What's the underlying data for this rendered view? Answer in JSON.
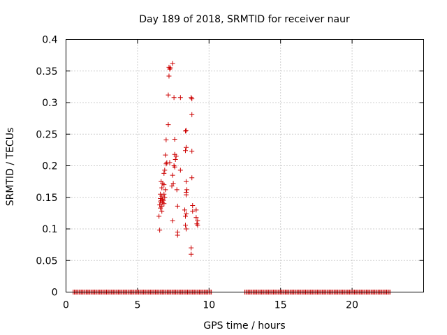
{
  "chart_data": {
    "type": "scatter",
    "title": "Day 189 of 2018, SRMTID for receiver naur",
    "xlabel": "GPS time / hours",
    "ylabel": "SRMTID / TECUs",
    "xlim": [
      0,
      25
    ],
    "ylim": [
      0,
      0.4
    ],
    "grid": true,
    "marker": "+",
    "color": "#cc0000",
    "x_ticks": [
      0,
      5,
      10,
      15,
      20
    ],
    "x_tick_labels": [
      "0",
      "5",
      "10",
      "15",
      "20"
    ],
    "y_ticks": [
      0,
      0.05,
      0.1,
      0.15,
      0.2,
      0.25,
      0.3,
      0.35,
      0.4
    ],
    "y_tick_labels": [
      "0",
      "0.05",
      "0.1",
      "0.15",
      "0.2",
      "0.25",
      "0.3",
      "0.35",
      "0.4"
    ],
    "zero_segments": [
      {
        "x_start": 0.5,
        "x_end": 10.2,
        "step": 0.0833,
        "y": 0
      },
      {
        "x_start": 12.5,
        "x_end": 22.7,
        "step": 0.0833,
        "y": 0
      }
    ],
    "points": [
      [
        7.45,
        0.362
      ],
      [
        7.2,
        0.356
      ],
      [
        7.25,
        0.353
      ],
      [
        7.3,
        0.355
      ],
      [
        7.2,
        0.342
      ],
      [
        7.15,
        0.312
      ],
      [
        7.55,
        0.308
      ],
      [
        8.0,
        0.308
      ],
      [
        8.75,
        0.308
      ],
      [
        8.8,
        0.306
      ],
      [
        8.8,
        0.281
      ],
      [
        7.15,
        0.265
      ],
      [
        8.35,
        0.255
      ],
      [
        8.4,
        0.256
      ],
      [
        7.6,
        0.242
      ],
      [
        7.0,
        0.241
      ],
      [
        8.4,
        0.229
      ],
      [
        8.35,
        0.224
      ],
      [
        8.8,
        0.223
      ],
      [
        6.95,
        0.217
      ],
      [
        7.6,
        0.218
      ],
      [
        7.7,
        0.215
      ],
      [
        7.65,
        0.21
      ],
      [
        7.05,
        0.205
      ],
      [
        7.0,
        0.203
      ],
      [
        7.25,
        0.205
      ],
      [
        7.55,
        0.2
      ],
      [
        6.9,
        0.193
      ],
      [
        7.6,
        0.198
      ],
      [
        8.0,
        0.193
      ],
      [
        6.85,
        0.188
      ],
      [
        7.45,
        0.185
      ],
      [
        8.8,
        0.181
      ],
      [
        6.65,
        0.175
      ],
      [
        6.75,
        0.172
      ],
      [
        8.4,
        0.175
      ],
      [
        7.5,
        0.172
      ],
      [
        6.85,
        0.17
      ],
      [
        7.4,
        0.168
      ],
      [
        6.7,
        0.165
      ],
      [
        7.75,
        0.162
      ],
      [
        6.95,
        0.162
      ],
      [
        8.45,
        0.162
      ],
      [
        8.4,
        0.158
      ],
      [
        6.6,
        0.155
      ],
      [
        6.85,
        0.155
      ],
      [
        8.4,
        0.154
      ],
      [
        6.7,
        0.152
      ],
      [
        6.9,
        0.15
      ],
      [
        6.6,
        0.148
      ],
      [
        6.75,
        0.147
      ],
      [
        6.65,
        0.145
      ],
      [
        6.8,
        0.145
      ],
      [
        6.6,
        0.143
      ],
      [
        6.75,
        0.142
      ],
      [
        6.85,
        0.14
      ],
      [
        6.55,
        0.138
      ],
      [
        6.7,
        0.136
      ],
      [
        6.6,
        0.133
      ],
      [
        8.85,
        0.137
      ],
      [
        7.8,
        0.136
      ],
      [
        9.1,
        0.13
      ],
      [
        8.3,
        0.13
      ],
      [
        6.7,
        0.128
      ],
      [
        8.85,
        0.128
      ],
      [
        8.4,
        0.124
      ],
      [
        8.35,
        0.12
      ],
      [
        6.5,
        0.12
      ],
      [
        9.1,
        0.118
      ],
      [
        7.45,
        0.113
      ],
      [
        9.2,
        0.113
      ],
      [
        9.15,
        0.108
      ],
      [
        8.35,
        0.106
      ],
      [
        9.2,
        0.106
      ],
      [
        8.4,
        0.1
      ],
      [
        6.55,
        0.098
      ],
      [
        7.8,
        0.095
      ],
      [
        7.8,
        0.09
      ],
      [
        8.75,
        0.07
      ],
      [
        8.75,
        0.06
      ]
    ]
  }
}
